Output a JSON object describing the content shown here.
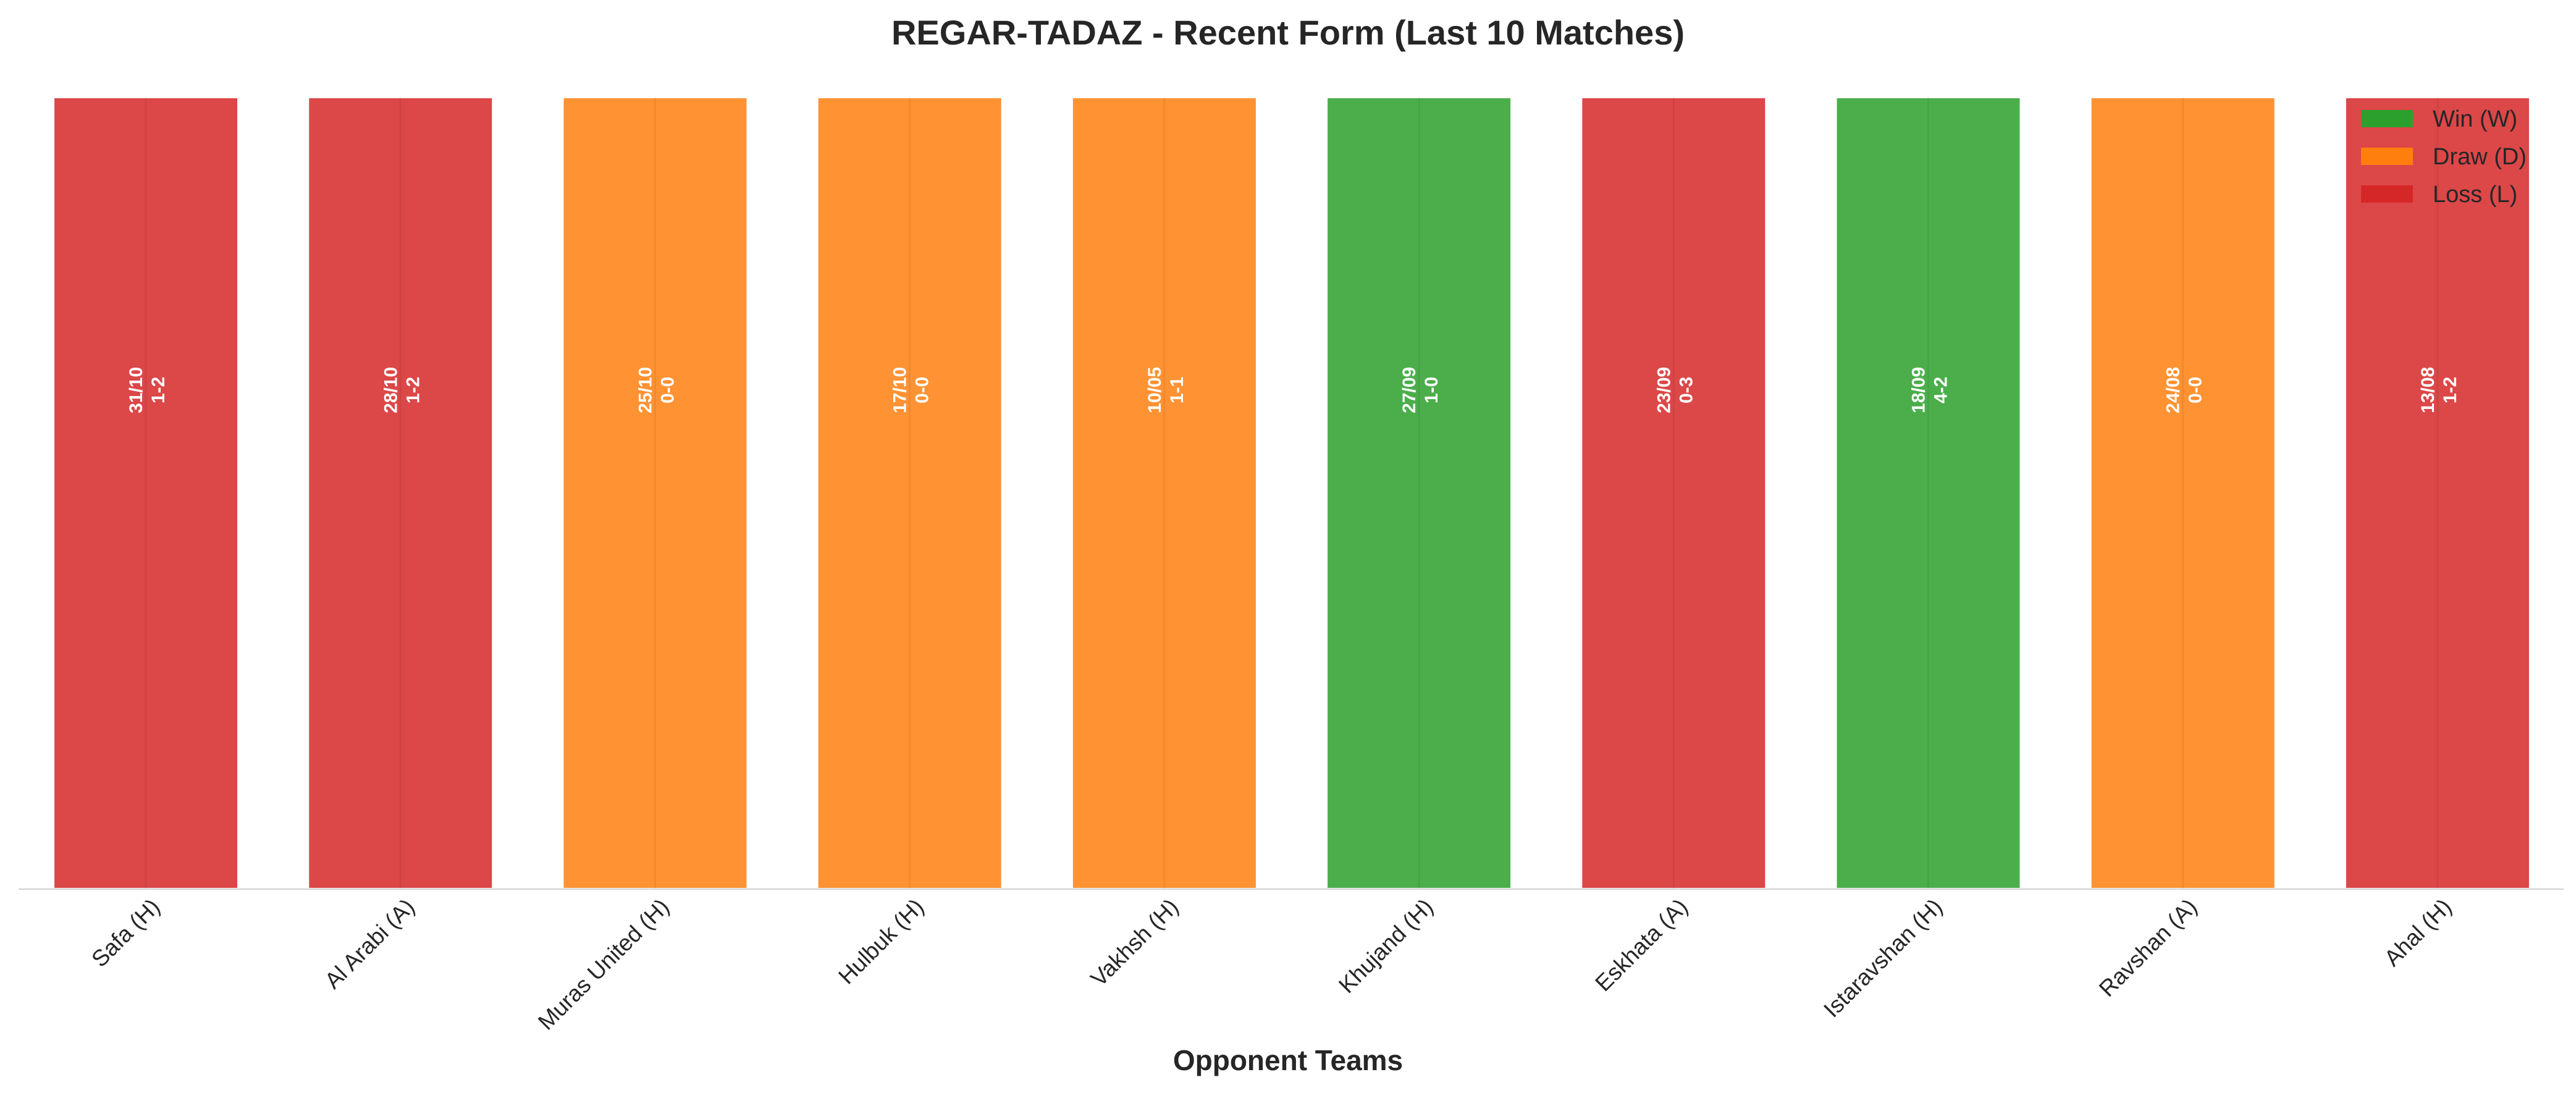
{
  "chart_data": {
    "type": "bar",
    "title": "REGAR-TADAZ - Recent Form (Last 10 Matches)",
    "xlabel": "Opponent Teams",
    "ylabel": "",
    "ylim": [
      0,
      1
    ],
    "grid": false,
    "legend_position": "top-right",
    "categories": [
      "Safa (H)",
      "Al Arabi (A)",
      "Muras United (H)",
      "Hulbuk (H)",
      "Vakhsh (H)",
      "Khujand (H)",
      "Eskhata (A)",
      "Istaravshan (H)",
      "Ravshan (A)",
      "Ahal (H)"
    ],
    "values": [
      1,
      1,
      1,
      1,
      1,
      1,
      1,
      1,
      1,
      1
    ],
    "results": [
      "L",
      "L",
      "D",
      "D",
      "D",
      "W",
      "L",
      "W",
      "D",
      "L"
    ],
    "dates": [
      "31/10",
      "28/10",
      "25/10",
      "17/10",
      "10/05",
      "27/09",
      "23/09",
      "18/09",
      "24/08",
      "13/08"
    ],
    "scores": [
      "1-2",
      "1-2",
      "0-0",
      "0-0",
      "1-1",
      "1-0",
      "0-3",
      "4-2",
      "0-0",
      "1-2"
    ],
    "colors": {
      "W": "#2ca02c",
      "D": "#ff7f0e",
      "L": "#d62728"
    },
    "legend": [
      {
        "key": "W",
        "label": "Win (W)"
      },
      {
        "key": "D",
        "label": "Draw (D)"
      },
      {
        "key": "L",
        "label": "Loss (L)"
      }
    ]
  }
}
